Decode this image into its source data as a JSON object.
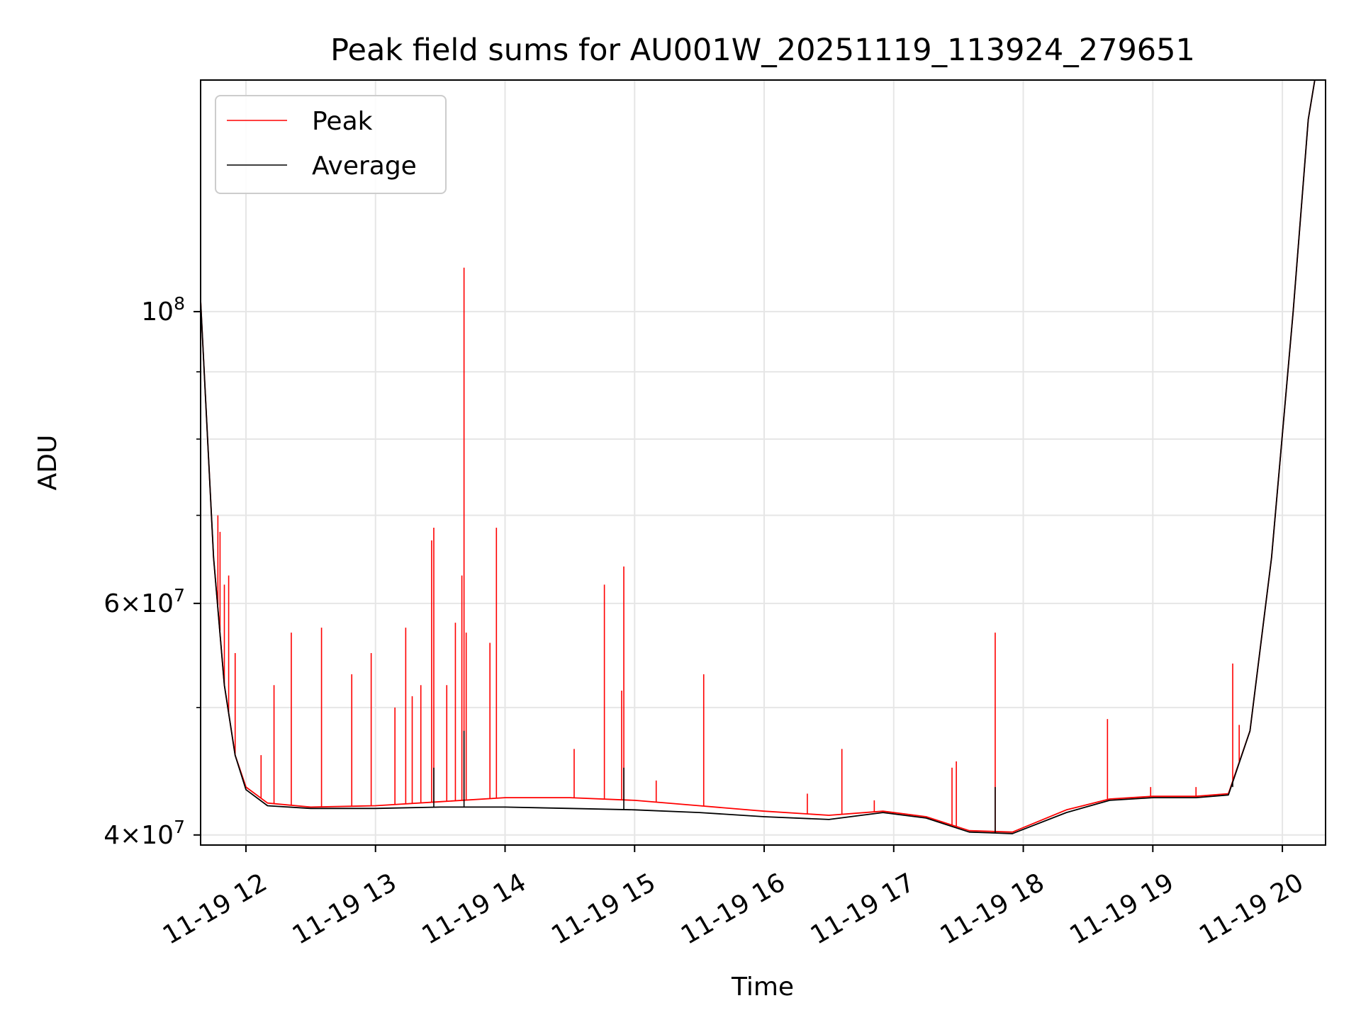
{
  "chart_data": {
    "type": "line",
    "title": "Peak field sums for AU001W_20251119_113924_279651",
    "xlabel": "Time",
    "ylabel": "ADU",
    "y_scale": "log",
    "ylim": [
      39300000,
      150000000
    ],
    "xlim": [
      "2025-11-19 11:39",
      "2025-11-19 20:20"
    ],
    "grid": true,
    "legend": {
      "placement": "upper-left"
    },
    "x_ticks": [
      {
        "time": "2025-11-19 12:00",
        "label": "11-19 12"
      },
      {
        "time": "2025-11-19 13:00",
        "label": "11-19 13"
      },
      {
        "time": "2025-11-19 14:00",
        "label": "11-19 14"
      },
      {
        "time": "2025-11-19 15:00",
        "label": "11-19 15"
      },
      {
        "time": "2025-11-19 16:00",
        "label": "11-19 16"
      },
      {
        "time": "2025-11-19 17:00",
        "label": "11-19 17"
      },
      {
        "time": "2025-11-19 18:00",
        "label": "11-19 18"
      },
      {
        "time": "2025-11-19 19:00",
        "label": "11-19 19"
      },
      {
        "time": "2025-11-19 20:00",
        "label": "11-19 20"
      }
    ],
    "y_ticks": [
      {
        "value": 40000000,
        "mantissa": "4",
        "exponent": "7"
      },
      {
        "value": 60000000,
        "mantissa": "6",
        "exponent": "7"
      },
      {
        "value": 100000000,
        "mantissa": "",
        "exponent": "8"
      }
    ],
    "y_minor_ticks": [
      50000000,
      70000000,
      80000000,
      90000000
    ],
    "series": [
      {
        "name": "Peak",
        "color": "#ff0000",
        "baseline": [
          [
            "2025-11-19 11:39",
            102000000
          ],
          [
            "2025-11-19 11:45",
            65000000
          ],
          [
            "2025-11-19 11:50",
            52000000
          ],
          [
            "2025-11-19 11:55",
            46000000
          ],
          [
            "2025-11-19 12:00",
            43500000
          ],
          [
            "2025-11-19 12:10",
            42300000
          ],
          [
            "2025-11-19 12:30",
            42000000
          ],
          [
            "2025-11-19 13:00",
            42100000
          ],
          [
            "2025-11-19 13:30",
            42400000
          ],
          [
            "2025-11-19 14:00",
            42700000
          ],
          [
            "2025-11-19 14:30",
            42700000
          ],
          [
            "2025-11-19 15:00",
            42500000
          ],
          [
            "2025-11-19 15:30",
            42100000
          ],
          [
            "2025-11-19 16:00",
            41700000
          ],
          [
            "2025-11-19 16:30",
            41400000
          ],
          [
            "2025-11-19 16:55",
            41700000
          ],
          [
            "2025-11-19 17:15",
            41300000
          ],
          [
            "2025-11-19 17:35",
            40300000
          ],
          [
            "2025-11-19 17:55",
            40200000
          ],
          [
            "2025-11-19 18:20",
            41800000
          ],
          [
            "2025-11-19 18:40",
            42600000
          ],
          [
            "2025-11-19 19:00",
            42800000
          ],
          [
            "2025-11-19 19:20",
            42800000
          ],
          [
            "2025-11-19 19:35",
            43000000
          ],
          [
            "2025-11-19 19:45",
            48000000
          ],
          [
            "2025-11-19 19:55",
            65000000
          ],
          [
            "2025-11-19 20:05",
            100000000
          ],
          [
            "2025-11-19 20:12",
            140000000
          ],
          [
            "2025-11-19 20:15",
            150000000
          ],
          [
            "2025-11-19 20:20",
            150000000
          ]
        ],
        "spikes": [
          [
            "2025-11-19 11:47",
            70000000
          ],
          [
            "2025-11-19 11:48",
            68000000
          ],
          [
            "2025-11-19 11:50",
            62000000
          ],
          [
            "2025-11-19 11:52",
            63000000
          ],
          [
            "2025-11-19 11:55",
            55000000
          ],
          [
            "2025-11-19 12:07",
            46000000
          ],
          [
            "2025-11-19 12:13",
            52000000
          ],
          [
            "2025-11-19 12:21",
            57000000
          ],
          [
            "2025-11-19 12:35",
            57500000
          ],
          [
            "2025-11-19 12:49",
            53000000
          ],
          [
            "2025-11-19 12:58",
            55000000
          ],
          [
            "2025-11-19 13:09",
            50000000
          ],
          [
            "2025-11-19 13:14",
            57500000
          ],
          [
            "2025-11-19 13:17",
            51000000
          ],
          [
            "2025-11-19 13:21",
            52000000
          ],
          [
            "2025-11-19 13:26",
            67000000
          ],
          [
            "2025-11-19 13:27",
            68500000
          ],
          [
            "2025-11-19 13:33",
            52000000
          ],
          [
            "2025-11-19 13:37",
            58000000
          ],
          [
            "2025-11-19 13:40",
            63000000
          ],
          [
            "2025-11-19 13:41",
            108000000
          ],
          [
            "2025-11-19 13:42",
            57000000
          ],
          [
            "2025-11-19 13:53",
            56000000
          ],
          [
            "2025-11-19 13:56",
            68500000
          ],
          [
            "2025-11-19 14:32",
            46500000
          ],
          [
            "2025-11-19 14:46",
            62000000
          ],
          [
            "2025-11-19 14:54",
            51500000
          ],
          [
            "2025-11-19 14:55",
            64000000
          ],
          [
            "2025-11-19 15:10",
            44000000
          ],
          [
            "2025-11-19 15:32",
            53000000
          ],
          [
            "2025-11-19 16:20",
            43000000
          ],
          [
            "2025-11-19 16:36",
            46500000
          ],
          [
            "2025-11-19 16:51",
            42500000
          ],
          [
            "2025-11-19 17:27",
            45000000
          ],
          [
            "2025-11-19 17:29",
            45500000
          ],
          [
            "2025-11-19 17:47",
            57000000
          ],
          [
            "2025-11-19 18:39",
            49000000
          ],
          [
            "2025-11-19 18:59",
            43500000
          ],
          [
            "2025-11-19 19:20",
            43500000
          ],
          [
            "2025-11-19 19:37",
            54000000
          ],
          [
            "2025-11-19 19:40",
            48500000
          ]
        ]
      },
      {
        "name": "Average",
        "color": "#000000",
        "baseline": [
          [
            "2025-11-19 11:39",
            102000000
          ],
          [
            "2025-11-19 11:45",
            65000000
          ],
          [
            "2025-11-19 11:50",
            52000000
          ],
          [
            "2025-11-19 11:55",
            46000000
          ],
          [
            "2025-11-19 12:00",
            43300000
          ],
          [
            "2025-11-19 12:10",
            42100000
          ],
          [
            "2025-11-19 12:30",
            41900000
          ],
          [
            "2025-11-19 13:00",
            41900000
          ],
          [
            "2025-11-19 13:30",
            42000000
          ],
          [
            "2025-11-19 14:00",
            42000000
          ],
          [
            "2025-11-19 14:30",
            41900000
          ],
          [
            "2025-11-19 15:00",
            41800000
          ],
          [
            "2025-11-19 15:30",
            41600000
          ],
          [
            "2025-11-19 16:00",
            41300000
          ],
          [
            "2025-11-19 16:30",
            41100000
          ],
          [
            "2025-11-19 16:55",
            41600000
          ],
          [
            "2025-11-19 17:15",
            41200000
          ],
          [
            "2025-11-19 17:35",
            40200000
          ],
          [
            "2025-11-19 17:55",
            40100000
          ],
          [
            "2025-11-19 18:20",
            41600000
          ],
          [
            "2025-11-19 18:40",
            42500000
          ],
          [
            "2025-11-19 19:00",
            42700000
          ],
          [
            "2025-11-19 19:20",
            42700000
          ],
          [
            "2025-11-19 19:35",
            42900000
          ],
          [
            "2025-11-19 19:45",
            48000000
          ],
          [
            "2025-11-19 19:55",
            65000000
          ],
          [
            "2025-11-19 20:05",
            100000000
          ],
          [
            "2025-11-19 20:12",
            140000000
          ],
          [
            "2025-11-19 20:15",
            150000000
          ],
          [
            "2025-11-19 20:20",
            150000000
          ]
        ],
        "spikes": [
          [
            "2025-11-19 13:27",
            45000000
          ],
          [
            "2025-11-19 13:41",
            48000000
          ],
          [
            "2025-11-19 14:55",
            45000000
          ],
          [
            "2025-11-19 17:47",
            43500000
          ],
          [
            "2025-11-19 19:37",
            43500000
          ]
        ]
      }
    ]
  }
}
